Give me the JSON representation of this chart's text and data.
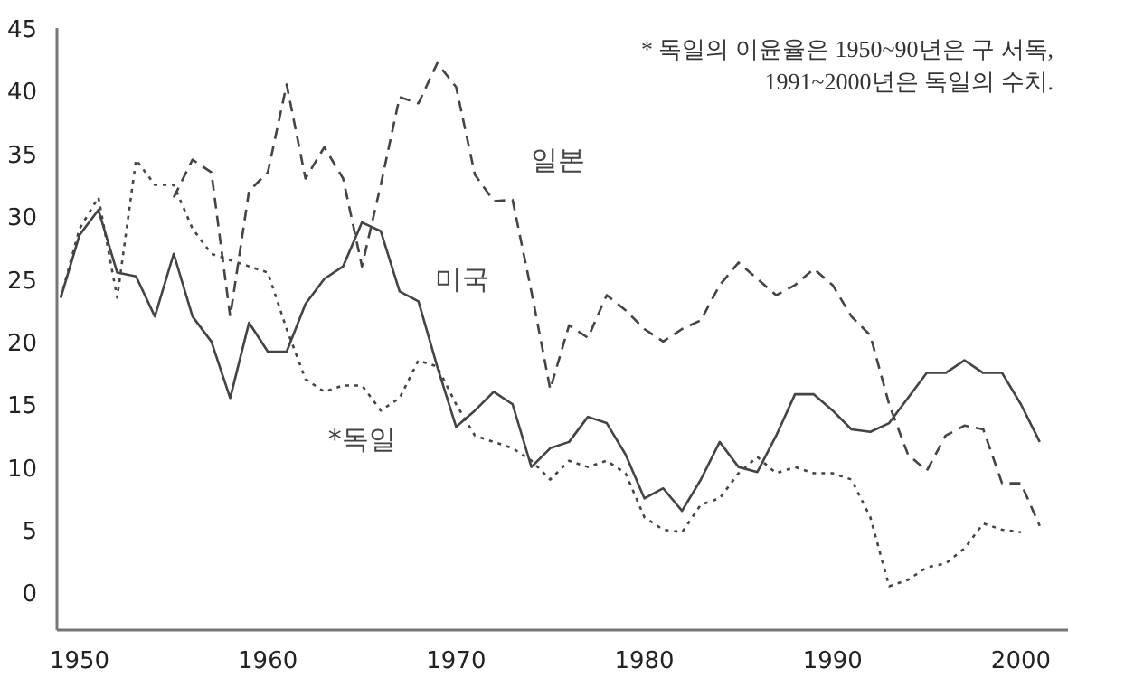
{
  "chart_data": {
    "type": "line",
    "xlim": [
      1948.8,
      2002.5
    ],
    "ylim": [
      -3,
      45
    ],
    "xticks": [
      1950,
      1960,
      1970,
      1980,
      1990,
      2000
    ],
    "yticks": [
      0,
      5,
      10,
      15,
      20,
      25,
      30,
      35,
      40,
      45
    ],
    "grid": false,
    "legend": false,
    "marker": "none",
    "series": [
      {
        "name": "미국",
        "color": "#444444",
        "line_style": "solid",
        "x": [
          1949,
          1950,
          1951,
          1952,
          1953,
          1954,
          1955,
          1956,
          1957,
          1958,
          1959,
          1960,
          1961,
          1962,
          1963,
          1964,
          1965,
          1966,
          1967,
          1968,
          1969,
          1970,
          1971,
          1972,
          1973,
          1974,
          1975,
          1976,
          1977,
          1978,
          1979,
          1980,
          1981,
          1982,
          1983,
          1984,
          1985,
          1986,
          1987,
          1988,
          1989,
          1990,
          1991,
          1992,
          1993,
          1994,
          1995,
          1996,
          1997,
          1998,
          1999,
          2000,
          2001
        ],
        "values": [
          23.5,
          28.5,
          30.5,
          25.5,
          25.2,
          22,
          27,
          22,
          20,
          15.5,
          21.5,
          19.2,
          19.2,
          23,
          25,
          26,
          29.5,
          28.8,
          24,
          23.2,
          18,
          13.2,
          14.5,
          16,
          15,
          10,
          11.5,
          12,
          14,
          13.5,
          11,
          7.5,
          8.3,
          6.5,
          9,
          12,
          10,
          9.6,
          12.5,
          15.8,
          15.8,
          14.5,
          13,
          12.8,
          13.5,
          15.5,
          17.5,
          17.5,
          18.5,
          17.5,
          17.5,
          15,
          12
        ]
      },
      {
        "name": "일본",
        "color": "#444444",
        "line_style": "dashed",
        "x": [
          1955,
          1956,
          1957,
          1958,
          1959,
          1960,
          1961,
          1962,
          1963,
          1964,
          1965,
          1966,
          1967,
          1968,
          1969,
          1970,
          1971,
          1972,
          1973,
          1974,
          1975,
          1976,
          1977,
          1978,
          1979,
          1980,
          1981,
          1982,
          1983,
          1984,
          1985,
          1986,
          1987,
          1988,
          1989,
          1990,
          1991,
          1992,
          1993,
          1994,
          1995,
          1996,
          1997,
          1998,
          1999,
          2000,
          2001
        ],
        "values": [
          31.5,
          34.5,
          33.5,
          22,
          32,
          33.5,
          40.5,
          33,
          35.5,
          33,
          26,
          32.5,
          39.5,
          39,
          42.2,
          40.3,
          33.3,
          31.2,
          31.3,
          24,
          16.2,
          21.3,
          20.3,
          23.7,
          22.5,
          21,
          20,
          21,
          21.7,
          24.5,
          26.3,
          25,
          23.7,
          24.5,
          25.8,
          24.5,
          22,
          20.5,
          15,
          11,
          9.7,
          12.5,
          13.3,
          13,
          8.7,
          8.7,
          5.3
        ]
      },
      {
        "name": "*독일",
        "color": "#444444",
        "line_style": "dotted",
        "x": [
          1949,
          1950,
          1951,
          1952,
          1953,
          1954,
          1955,
          1956,
          1957,
          1958,
          1959,
          1960,
          1961,
          1962,
          1963,
          1964,
          1965,
          1966,
          1967,
          1968,
          1969,
          1970,
          1971,
          1972,
          1973,
          1974,
          1975,
          1976,
          1977,
          1978,
          1979,
          1980,
          1981,
          1982,
          1983,
          1984,
          1985,
          1986,
          1987,
          1988,
          1989,
          1990,
          1991,
          1992,
          1993,
          1994,
          1995,
          1996,
          1997,
          1998,
          1999,
          2000
        ],
        "values": [
          23.5,
          29,
          31.5,
          23.5,
          34.5,
          32.5,
          32.5,
          29,
          27,
          26.5,
          26,
          25.5,
          21,
          17,
          16,
          16.5,
          16.5,
          14.5,
          15.5,
          18.5,
          18,
          15,
          12.5,
          12,
          11.5,
          10.5,
          9,
          10.5,
          10,
          10.5,
          9.5,
          6,
          5,
          4.8,
          7,
          7.5,
          9.5,
          10.8,
          9.5,
          10,
          9.5,
          9.5,
          9,
          6,
          0.5,
          1,
          2,
          2.3,
          3.5,
          5.5,
          5,
          4.8
        ]
      }
    ],
    "annotations": [
      "* 독일의 이윤율은 1950~90년은 구 서독,\n1991~2000년은 독일의 수치."
    ]
  }
}
